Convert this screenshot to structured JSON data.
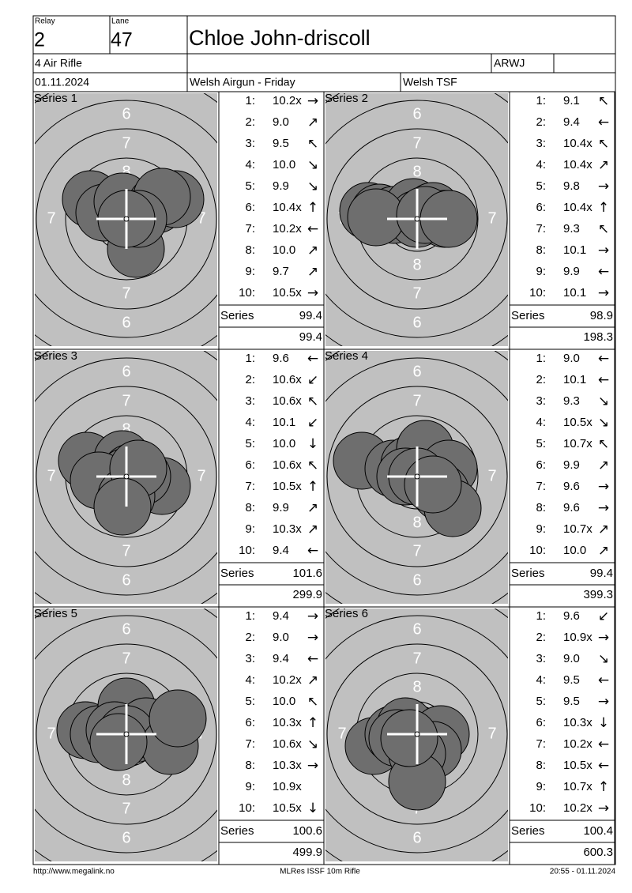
{
  "header": {
    "relay_label": "Relay",
    "relay": "2",
    "lane_label": "Lane",
    "lane": "47",
    "name": "Chloe John-driscoll",
    "event": "4 Air Rifle",
    "class": "ARWJ",
    "date": "01.11.2024",
    "competition": "Welsh Airgun - Friday",
    "club": "Welsh TSF"
  },
  "ring_labels": [
    "6",
    "7",
    "8"
  ],
  "series_label": "Series",
  "series": [
    {
      "title": "Series 1",
      "shots": [
        {
          "n": "1:",
          "score": "10.2x",
          "dir": "→"
        },
        {
          "n": "2:",
          "score": "9.0",
          "dir": "↗"
        },
        {
          "n": "3:",
          "score": "9.5",
          "dir": "↖"
        },
        {
          "n": "4:",
          "score": "10.0",
          "dir": "↘"
        },
        {
          "n": "5:",
          "score": "9.9",
          "dir": "↘"
        },
        {
          "n": "6:",
          "score": "10.4x",
          "dir": "↑"
        },
        {
          "n": "7:",
          "score": "10.2x",
          "dir": "←"
        },
        {
          "n": "8:",
          "score": "10.0",
          "dir": "↗"
        },
        {
          "n": "9:",
          "score": "9.7",
          "dir": "↗"
        },
        {
          "n": "10:",
          "score": "10.5x",
          "dir": "→"
        }
      ],
      "total": 99.4,
      "cumulative": 99.4
    },
    {
      "title": "Series 2",
      "shots": [
        {
          "n": "1:",
          "score": "9.1",
          "dir": "↖"
        },
        {
          "n": "2:",
          "score": "9.4",
          "dir": "←"
        },
        {
          "n": "3:",
          "score": "10.4x",
          "dir": "↖"
        },
        {
          "n": "4:",
          "score": "10.4x",
          "dir": "↗"
        },
        {
          "n": "5:",
          "score": "9.8",
          "dir": "→"
        },
        {
          "n": "6:",
          "score": "10.4x",
          "dir": "↑"
        },
        {
          "n": "7:",
          "score": "9.3",
          "dir": "↖"
        },
        {
          "n": "8:",
          "score": "10.1",
          "dir": "→"
        },
        {
          "n": "9:",
          "score": "9.9",
          "dir": "←"
        },
        {
          "n": "10:",
          "score": "10.1",
          "dir": "→"
        }
      ],
      "total": 98.9,
      "cumulative": 198.3
    },
    {
      "title": "Series 3",
      "shots": [
        {
          "n": "1:",
          "score": "9.6",
          "dir": "←"
        },
        {
          "n": "2:",
          "score": "10.6x",
          "dir": "↙"
        },
        {
          "n": "3:",
          "score": "10.6x",
          "dir": "↖"
        },
        {
          "n": "4:",
          "score": "10.1",
          "dir": "↙"
        },
        {
          "n": "5:",
          "score": "10.0",
          "dir": "↓"
        },
        {
          "n": "6:",
          "score": "10.6x",
          "dir": "↖"
        },
        {
          "n": "7:",
          "score": "10.5x",
          "dir": "↑"
        },
        {
          "n": "8:",
          "score": "9.9",
          "dir": "↗"
        },
        {
          "n": "9:",
          "score": "10.3x",
          "dir": "↗"
        },
        {
          "n": "10:",
          "score": "9.4",
          "dir": "←"
        }
      ],
      "total": 101.6,
      "cumulative": 299.9
    },
    {
      "title": "Series 4",
      "shots": [
        {
          "n": "1:",
          "score": "9.0",
          "dir": "←"
        },
        {
          "n": "2:",
          "score": "10.1",
          "dir": "←"
        },
        {
          "n": "3:",
          "score": "9.3",
          "dir": "↘"
        },
        {
          "n": "4:",
          "score": "10.5x",
          "dir": "↘"
        },
        {
          "n": "5:",
          "score": "10.7x",
          "dir": "↖"
        },
        {
          "n": "6:",
          "score": "9.9",
          "dir": "↗"
        },
        {
          "n": "7:",
          "score": "9.6",
          "dir": "→"
        },
        {
          "n": "8:",
          "score": "9.6",
          "dir": "→"
        },
        {
          "n": "9:",
          "score": "10.7x",
          "dir": "↗"
        },
        {
          "n": "10:",
          "score": "10.0",
          "dir": "↗"
        }
      ],
      "total": 99.4,
      "cumulative": 399.3
    },
    {
      "title": "Series 5",
      "shots": [
        {
          "n": "1:",
          "score": "9.4",
          "dir": "→"
        },
        {
          "n": "2:",
          "score": "9.0",
          "dir": "→"
        },
        {
          "n": "3:",
          "score": "9.4",
          "dir": "←"
        },
        {
          "n": "4:",
          "score": "10.2x",
          "dir": "↗"
        },
        {
          "n": "5:",
          "score": "10.0",
          "dir": "↖"
        },
        {
          "n": "6:",
          "score": "10.3x",
          "dir": "↑"
        },
        {
          "n": "7:",
          "score": "10.6x",
          "dir": "↘"
        },
        {
          "n": "8:",
          "score": "10.3x",
          "dir": "→"
        },
        {
          "n": "9:",
          "score": "10.9x"
        },
        {
          "n": "10:",
          "score": "10.5x",
          "dir": "↓"
        }
      ],
      "total": 100.6,
      "cumulative": 499.9
    },
    {
      "title": "Series 6",
      "shots": [
        {
          "n": "1:",
          "score": "9.6",
          "dir": "↙"
        },
        {
          "n": "2:",
          "score": "10.9x",
          "dir": "→"
        },
        {
          "n": "3:",
          "score": "9.0",
          "dir": "↘"
        },
        {
          "n": "4:",
          "score": "9.5",
          "dir": "←"
        },
        {
          "n": "5:",
          "score": "9.5",
          "dir": "→"
        },
        {
          "n": "6:",
          "score": "10.3x",
          "dir": "↓"
        },
        {
          "n": "7:",
          "score": "10.2x",
          "dir": "←"
        },
        {
          "n": "8:",
          "score": "10.5x",
          "dir": "←"
        },
        {
          "n": "9:",
          "score": "10.7x",
          "dir": "↑"
        },
        {
          "n": "10:",
          "score": "10.2x",
          "dir": "→"
        }
      ],
      "total": 100.4,
      "cumulative": 600.3
    }
  ],
  "footer": {
    "url": "http://www.megalink.no",
    "software": "MLRes ISSF 10m Rifle",
    "timestamp": "20:55 - 01.11.2024"
  }
}
